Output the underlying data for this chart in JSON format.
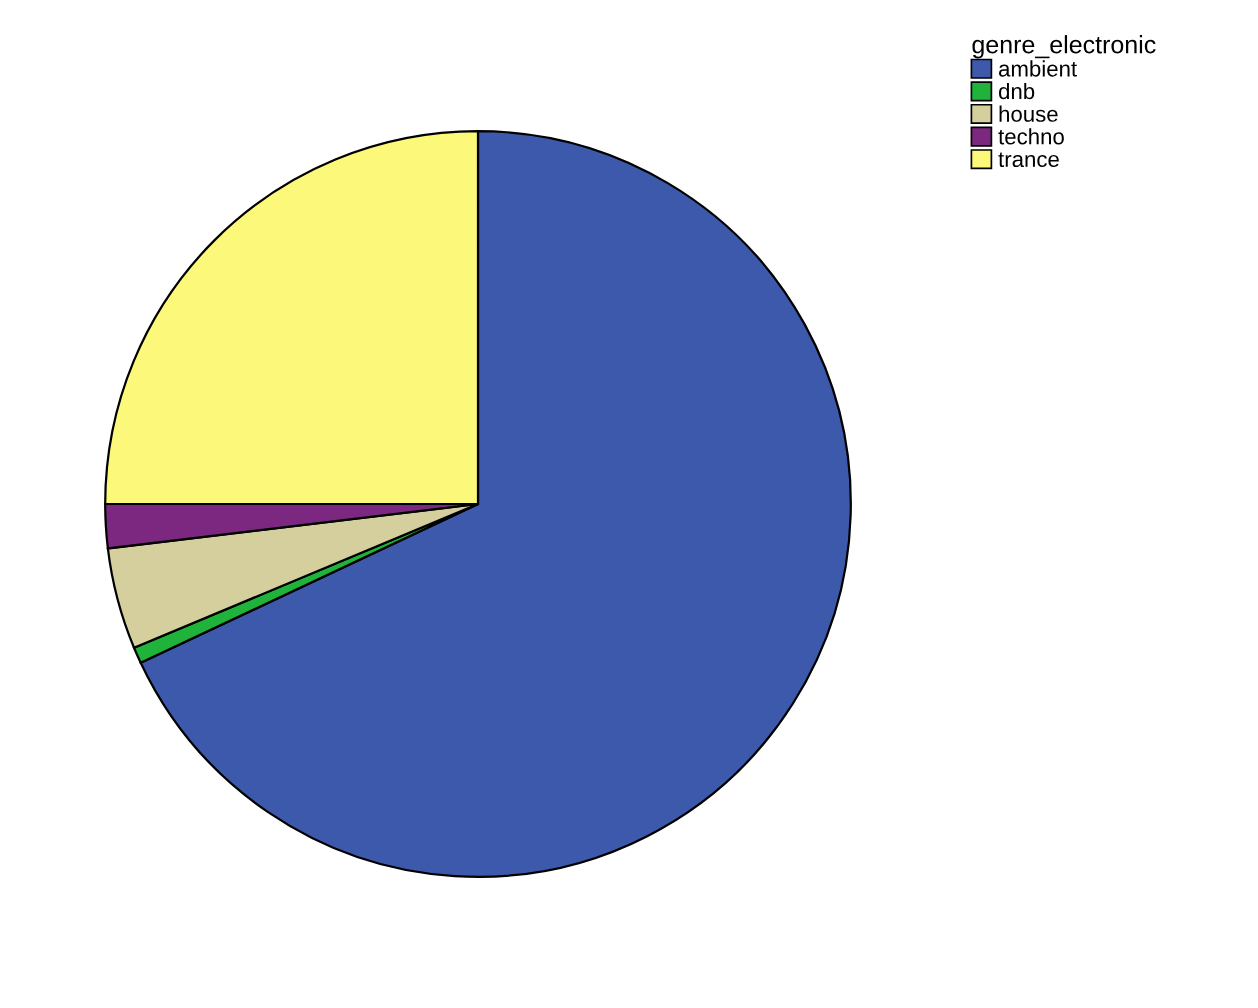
{
  "chart_data": {
    "type": "pie",
    "legend_title": "genre_electronic",
    "legend": "top right",
    "categories": [
      "ambient",
      "dnb",
      "house",
      "techno",
      "trance"
    ],
    "values": [
      68.0,
      0.7,
      4.4,
      1.9,
      25.0
    ],
    "colors": [
      "#3d59ab",
      "#1fb33c",
      "#d4cf9c",
      "#7d2880",
      "#fbf87a"
    ]
  }
}
